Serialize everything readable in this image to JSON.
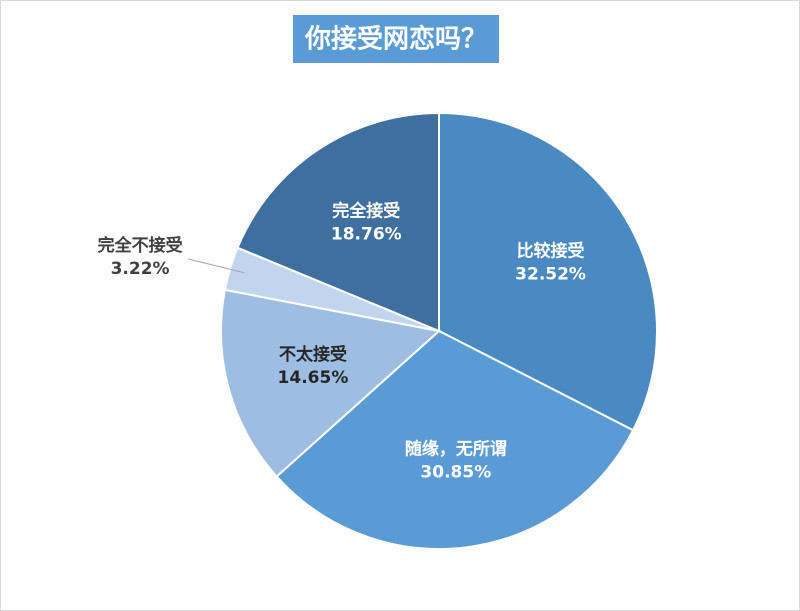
{
  "chart_data": {
    "type": "pie",
    "title": "你接受网恋吗？",
    "categories": [
      "比较接受",
      "随缘，无所谓",
      "不太接受",
      "完全不接受",
      "完全接受"
    ],
    "values": [
      32.52,
      30.85,
      14.65,
      3.22,
      18.76
    ],
    "value_labels": [
      "32.52%",
      "30.85%",
      "14.65%",
      "3.22%",
      "18.76%"
    ],
    "colors": [
      "#4a89c2",
      "#5b9bd5",
      "#9dbde3",
      "#c2d5ee",
      "#3f6f9e"
    ]
  }
}
